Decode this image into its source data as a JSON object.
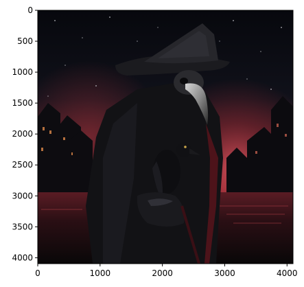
{
  "chart_data": {
    "type": "image",
    "image_description": "Dark fantasy scene: a plague doctor in a wide-brimmed pointed hat and beaked mask, wearing a black cloak, holding a black crow on a gloved hand, standing in a flooded street of dark gabled houses under a blood-red sky with falling ash.",
    "xlim": [
      0,
      4096
    ],
    "ylim": [
      4096,
      0
    ],
    "x_ticks": [
      0,
      1000,
      2000,
      3000,
      4000
    ],
    "y_ticks": [
      0,
      500,
      1000,
      1500,
      2000,
      2500,
      3000,
      3500,
      4000
    ],
    "x_tick_labels": [
      "0",
      "1000",
      "2000",
      "3000",
      "4000"
    ],
    "y_tick_labels": [
      "0",
      "500",
      "1000",
      "1500",
      "2000",
      "2500",
      "3000",
      "3500",
      "4000"
    ],
    "grid": false
  },
  "colors": {
    "sky_dark": "#0b0c12",
    "sky_red": "#b0333d",
    "figure_black": "#111114",
    "axis": "#000000"
  }
}
